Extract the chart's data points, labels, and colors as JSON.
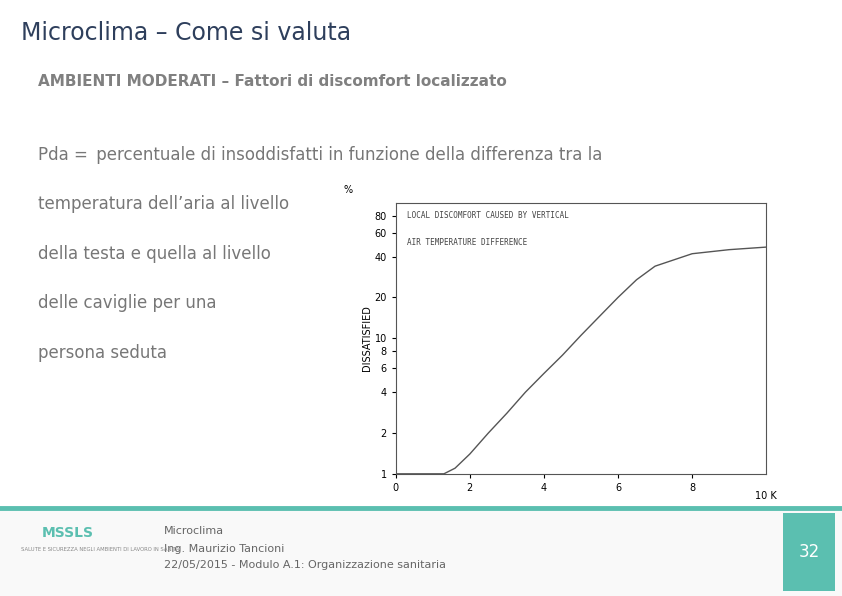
{
  "title": "Microclima – Come si valuta",
  "subtitle": "AMBIENTI MODERATI – Fattori di discomfort localizzato",
  "pda_bold": "Pda =",
  "pda_rest": " percentuale di insoddisfatti in funzione della differenza tra la",
  "body_line2": "temperatura dell’aria al livello",
  "body_line3": "della testa e quella al livello",
  "body_line4": "delle caviglie per una",
  "body_line5": "persona seduta",
  "chart_title_line1": "LOCAL DISCOMFORT CAUSED BY VERTICAL",
  "chart_title_line2": "AIR TEMPERATURE DIFFERENCE",
  "chart_xlabel_end": "10 K",
  "chart_ylabel": "DISSATISFIED",
  "chart_ylabel_top": "%",
  "footer_line1": "Microclima",
  "footer_line2": "Ing. Maurizio Tancioni",
  "footer_line3": "22/05/2015 - Modulo A.1: Organizzazione sanitaria",
  "footer_page": "32",
  "bg_color": "#ffffff",
  "title_color": "#2e3f5c",
  "subtitle_color": "#808080",
  "body_color": "#777777",
  "chart_line_color": "#555555",
  "teal_color": "#5bbfb0",
  "page_num_bg": "#5bbfb0",
  "title_fontsize": 17,
  "subtitle_fontsize": 11,
  "body_fontsize": 12,
  "chart_x_data": [
    0,
    1.3,
    1.6,
    2.0,
    2.5,
    3.0,
    3.5,
    4.0,
    4.5,
    5.0,
    5.5,
    6.0,
    6.5,
    7.0,
    8.0,
    9.0,
    10.0
  ],
  "chart_y_data": [
    1,
    1,
    1.1,
    1.4,
    2.0,
    2.8,
    4.0,
    5.5,
    7.5,
    10.5,
    14.5,
    20.0,
    27.0,
    34.0,
    42.0,
    45.0,
    47.0
  ],
  "chart_xticks": [
    0,
    2,
    4,
    6,
    8
  ],
  "chart_yticks_log": [
    1,
    2,
    4,
    6,
    8,
    10,
    20,
    40,
    60,
    80
  ]
}
